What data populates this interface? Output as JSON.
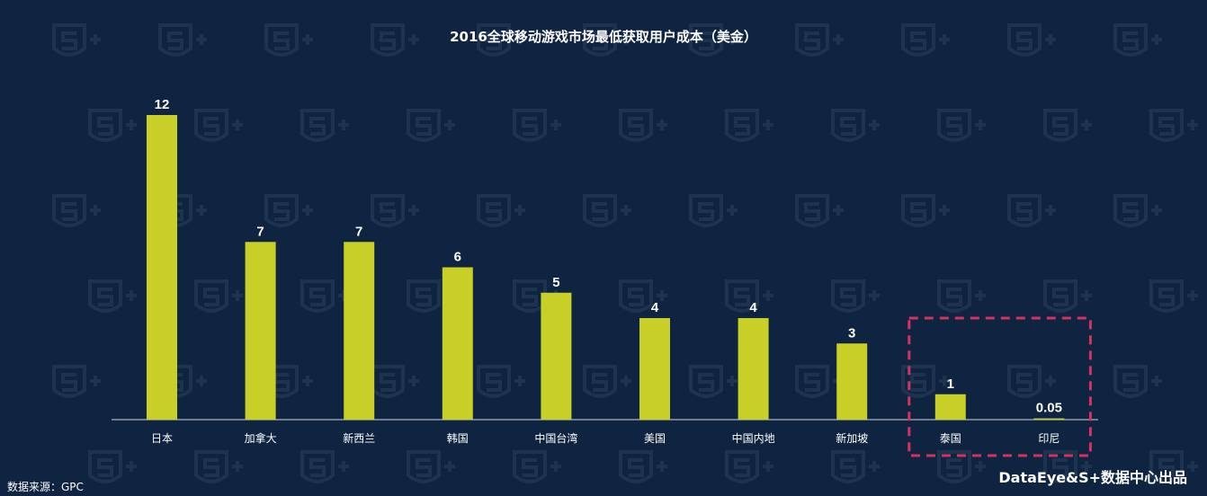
{
  "chart_data": {
    "type": "bar",
    "title": "2016全球移动游戏市场最低获取用户成本（美金）",
    "categories": [
      "日本",
      "加拿大",
      "新西兰",
      "韩国",
      "中国台湾",
      "美国",
      "中国内地",
      "新加坡",
      "泰国",
      "印尼"
    ],
    "values": [
      12,
      7,
      7,
      6,
      5,
      4,
      4,
      3,
      1,
      0.05
    ],
    "value_labels": [
      "12",
      "7",
      "7",
      "6",
      "5",
      "4",
      "4",
      "3",
      "1",
      "0.05"
    ],
    "ylim": [
      0,
      12
    ],
    "xlabel": "",
    "ylabel": "",
    "grid": false,
    "highlighted_categories": [
      "泰国",
      "印尼"
    ],
    "colors": {
      "background": "#0f2440",
      "bar": "#c8cf26",
      "text": "#ffffff",
      "axis": "#cfd6de",
      "highlight_box": "#d8305f",
      "watermark": "#1d3350"
    }
  },
  "footer": {
    "source": "数据来源：GPC",
    "brand": "DataEye&S+数据中心出品"
  }
}
